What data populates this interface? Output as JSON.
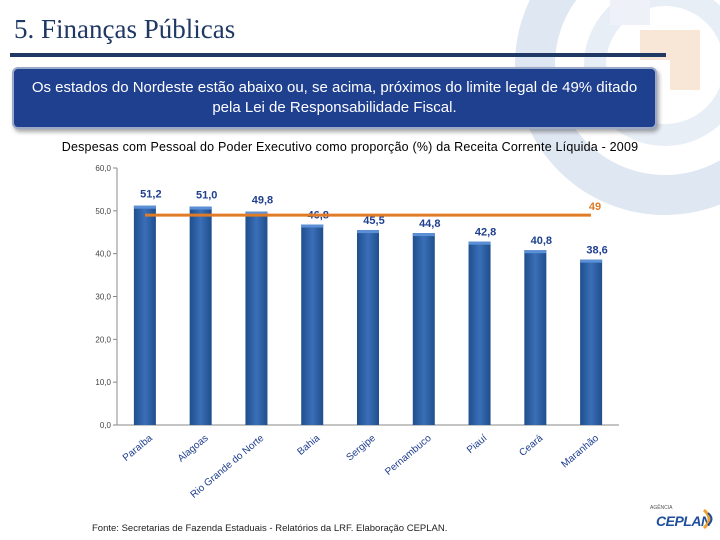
{
  "header": {
    "title": "5. Finanças Públicas",
    "callout": "Os estados do Nordeste estão abaixo ou, se acima, próximos do limite legal de 49% ditado pela Lei de Responsabilidade Fiscal."
  },
  "footer": {
    "source": "Fonte: Secretarias de Fazenda Estaduais - Relatórios da LRF. Elaboração CEPLAN.",
    "logo_small": "AGÊNCIA",
    "logo_text": "CEPLAN"
  },
  "colors": {
    "bar": "#1f4e8c",
    "bar_top": "#3a6fb8",
    "limit_line": "#e07b28",
    "label_blue": "#1f3f8f",
    "label_orange": "#e07b28",
    "axis_text": "#444444"
  },
  "chart_data": {
    "type": "bar",
    "title": "Despesas com Pessoal do Poder Executivo como proporção (%) da Receita Corrente Líquida - 2009",
    "categories": [
      "Paraíba",
      "Alagoas",
      "Rio Grande do Norte",
      "Bahia",
      "Sergipe",
      "Pernambuco",
      "Piauí",
      "Ceará",
      "Maranhão"
    ],
    "values": [
      51.2,
      51.0,
      49.8,
      46.8,
      45.5,
      44.8,
      42.8,
      40.8,
      38.6
    ],
    "value_labels": [
      "51,2",
      "51,0",
      "49,8",
      "46,8",
      "45,5",
      "44,8",
      "42,8",
      "40,8",
      "38,6"
    ],
    "ylim": [
      0,
      60
    ],
    "yticks": [
      0,
      10,
      20,
      30,
      40,
      50,
      60
    ],
    "ytick_labels": [
      "0,0",
      "10,0",
      "20,0",
      "30,0",
      "40,0",
      "50,0",
      "60,0"
    ],
    "reference_line": {
      "value": 49,
      "label": "49"
    },
    "xlabel": "",
    "ylabel": ""
  }
}
